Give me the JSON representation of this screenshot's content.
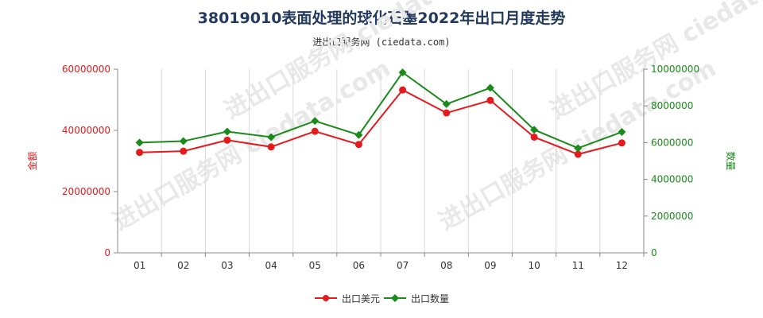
{
  "title": "38019010表面处理的球化石墨2022年出口月度走势",
  "subtitle": "进出口服务网 (ciedata.com)",
  "watermark": "进出口服务网 ciedata.com",
  "chart_data": {
    "type": "line",
    "categories": [
      "01",
      "02",
      "03",
      "04",
      "05",
      "06",
      "07",
      "08",
      "09",
      "10",
      "11",
      "12"
    ],
    "y_left": {
      "label": "金额",
      "ylim": [
        0,
        60000000
      ],
      "ticks": [
        "0",
        "20000000",
        "40000000",
        "60000000"
      ],
      "color": "#e41a1c"
    },
    "y_right": {
      "label": "数量",
      "ylim": [
        0,
        10000000
      ],
      "ticks": [
        "0",
        "2000000",
        "4000000",
        "6000000",
        "8000000",
        "10000000"
      ],
      "color": "#1a8a1a"
    },
    "series": [
      {
        "name": "出口美元",
        "axis": "left",
        "color": "#e41a1c",
        "marker": "circle",
        "values": [
          32800000,
          33200000,
          36800000,
          34600000,
          39700000,
          35400000,
          53200000,
          45700000,
          49800000,
          37800000,
          32200000,
          35900000
        ]
      },
      {
        "name": "出口数量",
        "axis": "right",
        "color": "#1a8a1a",
        "marker": "diamond",
        "values": [
          6000000,
          6080000,
          6600000,
          6300000,
          7180000,
          6420000,
          9820000,
          8100000,
          8980000,
          6700000,
          5700000,
          6580000
        ]
      }
    ],
    "grid": {
      "x": true,
      "y": false
    },
    "legend": "bottom-center"
  }
}
